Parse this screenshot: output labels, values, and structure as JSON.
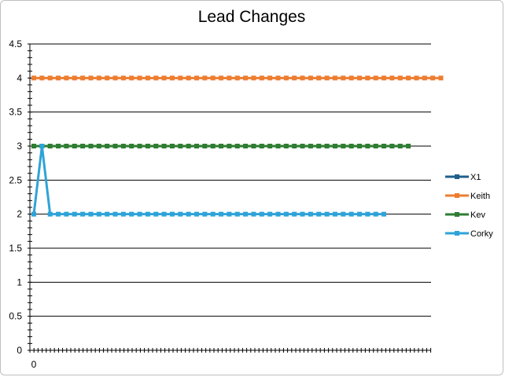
{
  "chart_data": {
    "type": "line",
    "title": "Lead Changes",
    "xlabel": "",
    "ylabel": "",
    "ylim": [
      0,
      4.5
    ],
    "y_ticks": [
      "0",
      "0.5",
      "1",
      "1.5",
      "2",
      "2.5",
      "3",
      "3.5",
      "4",
      "4.5"
    ],
    "x_tick_labels": [
      "0"
    ],
    "grid": true,
    "legend_position": "right",
    "series": [
      {
        "name": "X1",
        "color": "#1f5f8b",
        "values": []
      },
      {
        "name": "Keith",
        "color": "#ed7d31",
        "values": [
          4,
          4,
          4,
          4,
          4,
          4,
          4,
          4,
          4,
          4,
          4,
          4,
          4,
          4,
          4,
          4,
          4,
          4,
          4,
          4,
          4,
          4,
          4,
          4,
          4,
          4,
          4,
          4,
          4,
          4,
          4,
          4,
          4,
          4,
          4,
          4,
          4,
          4,
          4,
          4,
          4,
          4,
          4,
          4,
          4,
          4,
          4,
          4,
          4,
          4,
          4
        ]
      },
      {
        "name": "Kev",
        "color": "#2e7d32",
        "values": [
          3,
          3,
          3,
          3,
          3,
          3,
          3,
          3,
          3,
          3,
          3,
          3,
          3,
          3,
          3,
          3,
          3,
          3,
          3,
          3,
          3,
          3,
          3,
          3,
          3,
          3,
          3,
          3,
          3,
          3,
          3,
          3,
          3,
          3,
          3,
          3,
          3,
          3,
          3,
          3,
          3,
          3,
          3,
          3,
          3,
          3,
          3
        ]
      },
      {
        "name": "Corky",
        "color": "#2ea3d8",
        "values": [
          2,
          3,
          2,
          2,
          2,
          2,
          2,
          2,
          2,
          2,
          2,
          2,
          2,
          2,
          2,
          2,
          2,
          2,
          2,
          2,
          2,
          2,
          2,
          2,
          2,
          2,
          2,
          2,
          2,
          2,
          2,
          2,
          2,
          2,
          2,
          2,
          2,
          2,
          2,
          2,
          2,
          2,
          2,
          2
        ]
      }
    ]
  }
}
